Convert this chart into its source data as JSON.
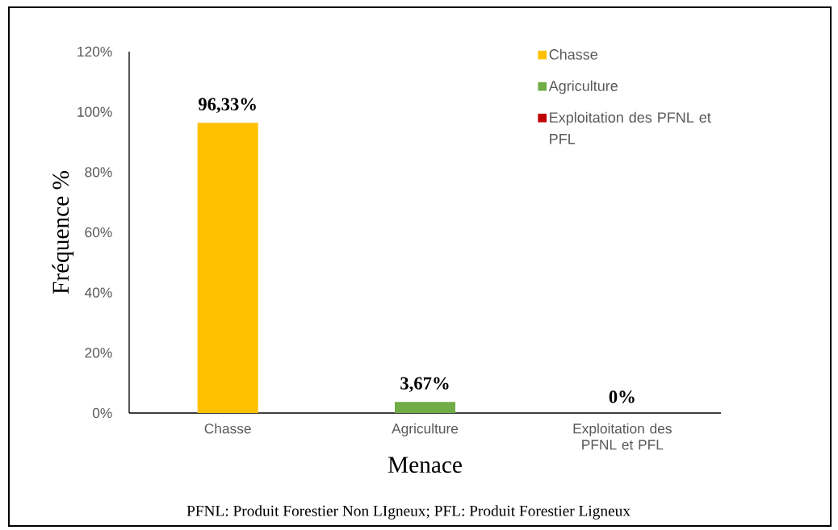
{
  "chart_data": {
    "type": "bar",
    "categories": [
      "Chasse",
      "Agriculture",
      "Exploitation des PFNL et PFL"
    ],
    "stacked": true,
    "series": [
      {
        "name": "Chasse",
        "color": "#ffc000",
        "values": [
          96.33,
          null,
          null
        ],
        "value_labels": [
          "96,33%",
          null,
          null
        ]
      },
      {
        "name": "Agriculture",
        "color": "#70ad47",
        "values": [
          null,
          3.67,
          null
        ],
        "value_labels": [
          null,
          "3,67%",
          null
        ]
      },
      {
        "name": "Exploitation des PFNL et PFL",
        "color": "#c00000",
        "values": [
          null,
          null,
          0
        ],
        "value_labels": [
          null,
          null,
          "0%"
        ]
      }
    ],
    "ylim": [
      0,
      120
    ],
    "yticks": [
      {
        "value": 0,
        "label": "0%"
      },
      {
        "value": 20,
        "label": "20%"
      },
      {
        "value": 40,
        "label": "40%"
      },
      {
        "value": 60,
        "label": "60%"
      },
      {
        "value": 80,
        "label": "80%"
      },
      {
        "value": 100,
        "label": "100%"
      },
      {
        "value": 120,
        "label": "120%"
      }
    ],
    "xlabel": "Menace",
    "ylabel": "Fréquence  %",
    "legend": "top right",
    "annotations": [
      "PFNL: Produit Forestier Non LIgneux; PFL: Produit Forestier Ligneux"
    ]
  }
}
